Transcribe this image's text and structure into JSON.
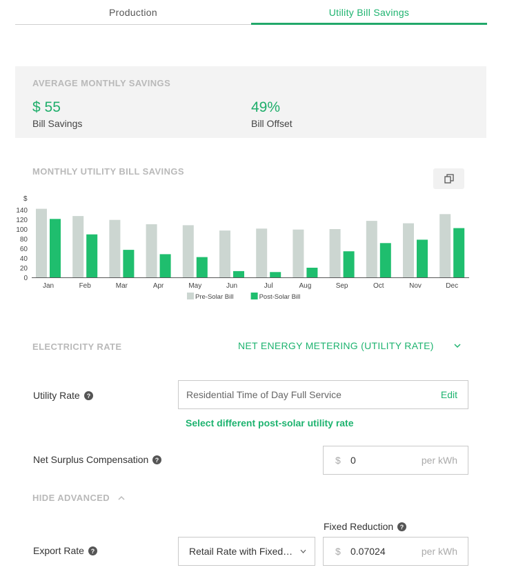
{
  "tabs": [
    {
      "label": "Production"
    },
    {
      "label": "Utility Bill Savings"
    }
  ],
  "summary": {
    "heading": "AVERAGE MONTHLY SAVINGS",
    "bill_savings_value": "$ 55",
    "bill_savings_label": "Bill Savings",
    "bill_offset_value": "49%",
    "bill_offset_label": "Bill Offset"
  },
  "chart_section": {
    "heading": "MONTHLY UTILITY BILL SAVINGS",
    "copy_icon": "copy-icon"
  },
  "chart_data": {
    "type": "bar",
    "title": "",
    "ylabel": "$",
    "xlabel": "",
    "ylim": [
      0,
      150
    ],
    "yticks": [
      0,
      20,
      40,
      60,
      80,
      100,
      120,
      140
    ],
    "categories": [
      "Jan",
      "Feb",
      "Mar",
      "Apr",
      "May",
      "Jun",
      "Jul",
      "Aug",
      "Sep",
      "Oct",
      "Nov",
      "Dec"
    ],
    "series": [
      {
        "name": "Pre-Solar Bill",
        "color": "#ccd6d1",
        "values": [
          142,
          127,
          119,
          110,
          108,
          97,
          101,
          99,
          100,
          117,
          112,
          131
        ]
      },
      {
        "name": "Post-Solar Bill",
        "color": "#1fbe6e",
        "values": [
          121,
          89,
          57,
          48,
          42,
          13,
          11,
          20,
          54,
          71,
          78,
          102
        ]
      }
    ],
    "legend_position": "bottom",
    "grid": false
  },
  "electricity_rate": {
    "label": "ELECTRICITY RATE",
    "selected": "NET ENERGY METERING (UTILITY RATE)"
  },
  "utility_rate": {
    "label": "Utility Rate",
    "value": "Residential Time of Day Full Service",
    "edit_label": "Edit",
    "select_link": "Select different post-solar utility rate"
  },
  "net_surplus": {
    "label": "Net Surplus Compensation",
    "prefix": "$",
    "value": "0",
    "suffix": "per kWh"
  },
  "advanced": {
    "toggle_label": "HIDE ADVANCED"
  },
  "export_rate": {
    "label": "Export Rate",
    "selected": "Retail Rate with Fixed Reduction",
    "fixed_reduction_label": "Fixed Reduction",
    "prefix": "$",
    "value": "0.07024",
    "suffix": "per kWh"
  },
  "colors": {
    "accent": "#1db36f",
    "muted_heading": "#b9b9b9",
    "pre_solar": "#ccd6d1",
    "post_solar": "#1fbe6e"
  }
}
